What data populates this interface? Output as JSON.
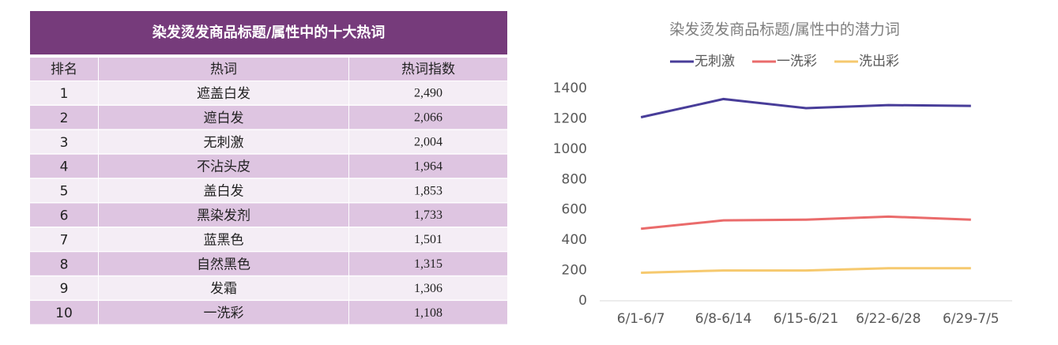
{
  "table": {
    "title": "染发烫发商品标题/属性中的十大热词",
    "columns": [
      "排名",
      "热词",
      "热词指数"
    ],
    "rows": [
      [
        1,
        "遮盖白发",
        "2,490"
      ],
      [
        2,
        "遮白发",
        "2,066"
      ],
      [
        3,
        "无刺激",
        "2,004"
      ],
      [
        4,
        "不沾头皮",
        "1,964"
      ],
      [
        5,
        "盖白发",
        "1,853"
      ],
      [
        6,
        "黑染发剂",
        "1,733"
      ],
      [
        7,
        "蓝黑色",
        "1,501"
      ],
      [
        8,
        "自然黑色",
        "1,315"
      ],
      [
        9,
        "发霜",
        "1,306"
      ],
      [
        10,
        "一洗彩",
        "1,108"
      ]
    ]
  },
  "chart_data": {
    "type": "line",
    "title": "染发烫发商品标题/属性中的潜力词",
    "categories": [
      "6/1-6/7",
      "6/8-6/14",
      "6/15-6/21",
      "6/22-6/28",
      "6/29-7/5"
    ],
    "series": [
      {
        "name": "无刺激",
        "color": "#483d99",
        "values": [
          1210,
          1330,
          1270,
          1290,
          1285
        ]
      },
      {
        "name": "一洗彩",
        "color": "#ea6b6b",
        "values": [
          475,
          530,
          535,
          555,
          535
        ]
      },
      {
        "name": "洗出彩",
        "color": "#f6c96e",
        "values": [
          185,
          200,
          200,
          215,
          215
        ]
      }
    ],
    "ylim": [
      0,
      1400
    ],
    "yticks": [
      0,
      200,
      400,
      600,
      800,
      1000,
      1200,
      1400
    ],
    "grid": false,
    "legend": "top"
  }
}
